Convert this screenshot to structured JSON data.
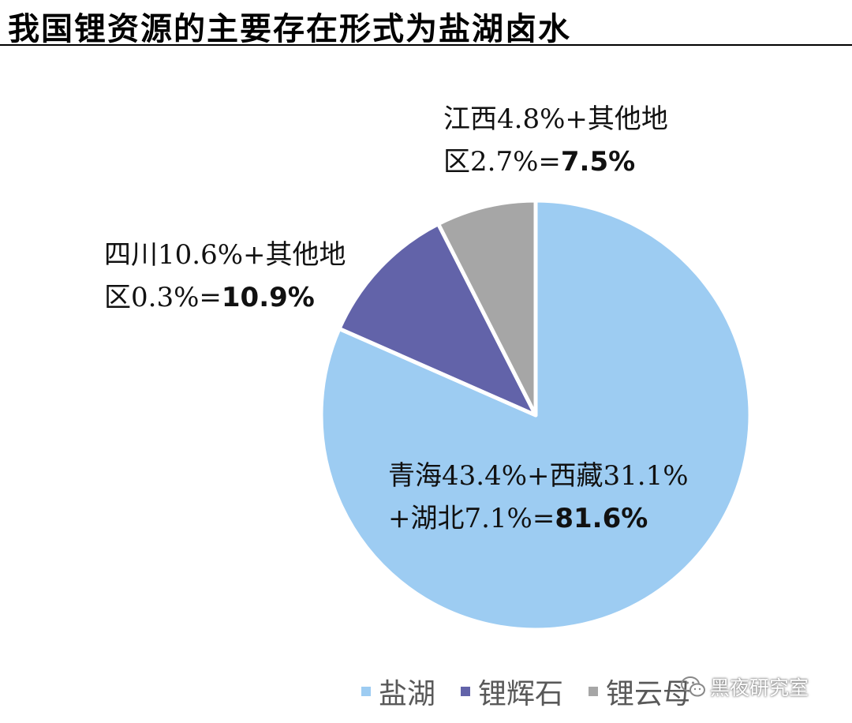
{
  "title": "我国锂资源的主要存在形式为盐湖卤水",
  "chart_data": {
    "type": "pie",
    "categories": [
      "盐湖",
      "锂辉石",
      "锂云母"
    ],
    "values": [
      81.6,
      10.9,
      7.5
    ],
    "colors": [
      "#9DCCF2",
      "#6263A9",
      "#A6A6A6"
    ],
    "start": "12 o'clock",
    "direction": "clockwise",
    "legend_position": "bottom",
    "slice_labels": [
      {
        "lines": [
          {
            "normal": "青海43.4%+西藏31.1%",
            "bold": ""
          },
          {
            "normal": "+湖北7.1%=",
            "bold": "81.6%"
          }
        ]
      },
      {
        "lines": [
          {
            "normal": "四川10.6%+其他地",
            "bold": ""
          },
          {
            "normal": "区0.3%=",
            "bold": "10.9%"
          }
        ]
      },
      {
        "lines": [
          {
            "normal": "江西4.8%+其他地",
            "bold": ""
          },
          {
            "normal": "区2.7%=",
            "bold": "7.5%"
          }
        ]
      }
    ]
  },
  "watermark": {
    "text": "黑夜研究室",
    "icon": "wechat-icon"
  }
}
